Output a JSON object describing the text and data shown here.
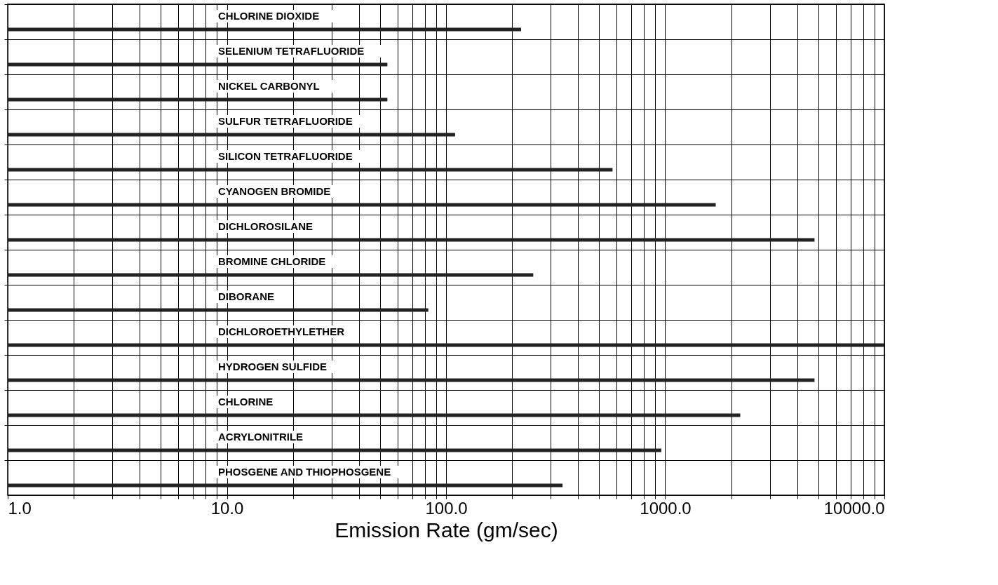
{
  "chart_data": {
    "type": "bar",
    "orientation": "horizontal",
    "xlabel": "Emission Rate (gm/sec)",
    "categories": [
      "CHLORINE DIOXIDE",
      "SELENIUM TETRAFLUORIDE",
      "NICKEL CARBONYL",
      "SULFUR TETRAFLUORIDE",
      "SILICON TETRAFLUORIDE",
      "CYANOGEN BROMIDE",
      "DICHLOROSILANE",
      "BROMINE CHLORIDE",
      "DIBORANE",
      "DICHLOROETHYLETHER",
      "HYDROGEN SULFIDE",
      "CHLORINE",
      "ACRYLONITRILE",
      "PHOSGENE AND THIOPHOSGENE"
    ],
    "values": [
      220,
      54,
      54,
      110,
      575,
      1700,
      4800,
      250,
      83,
      10000,
      4800,
      2200,
      960,
      340
    ],
    "color": "#222222",
    "log": "x",
    "xlim": [
      1,
      10000
    ],
    "xticks": [
      {
        "value": 1,
        "label": "1.0"
      },
      {
        "value": 10,
        "label": "10.0"
      },
      {
        "value": 100,
        "label": "100.0"
      },
      {
        "value": 1000,
        "label": "1000.0"
      },
      {
        "value": 10000,
        "label": "10000.0"
      }
    ],
    "grid": true,
    "tick_labels": "x"
  }
}
